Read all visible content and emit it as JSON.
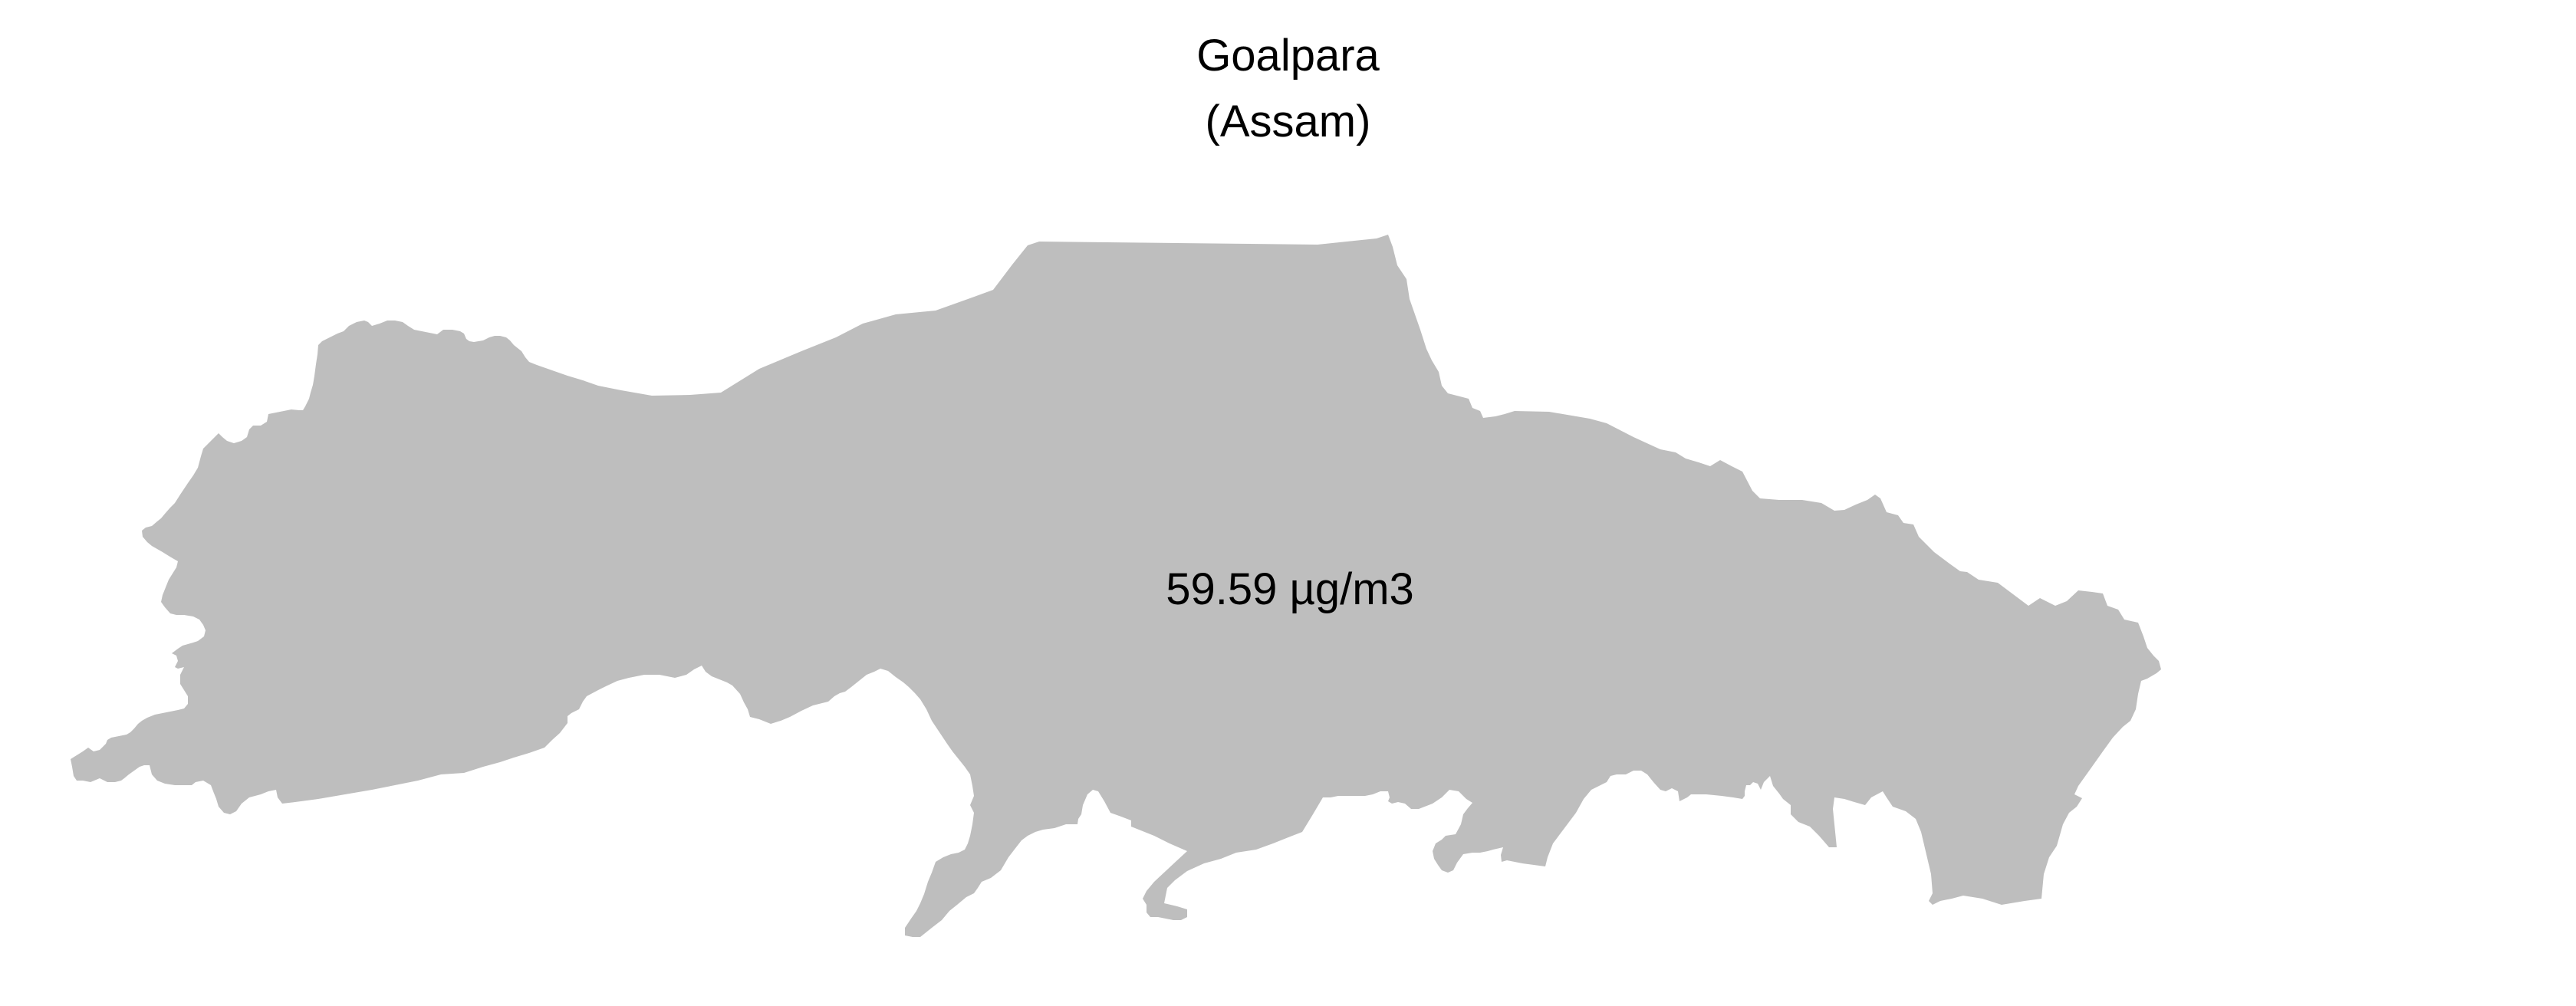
{
  "map": {
    "title": "Goalpara",
    "subtitle": "(Assam)",
    "region": {
      "name": "Goalpara",
      "value_label": "59.59 µg/m3"
    },
    "fill_color": "#bebebe",
    "text_color": "#000000",
    "background_color": "#ffffff"
  }
}
